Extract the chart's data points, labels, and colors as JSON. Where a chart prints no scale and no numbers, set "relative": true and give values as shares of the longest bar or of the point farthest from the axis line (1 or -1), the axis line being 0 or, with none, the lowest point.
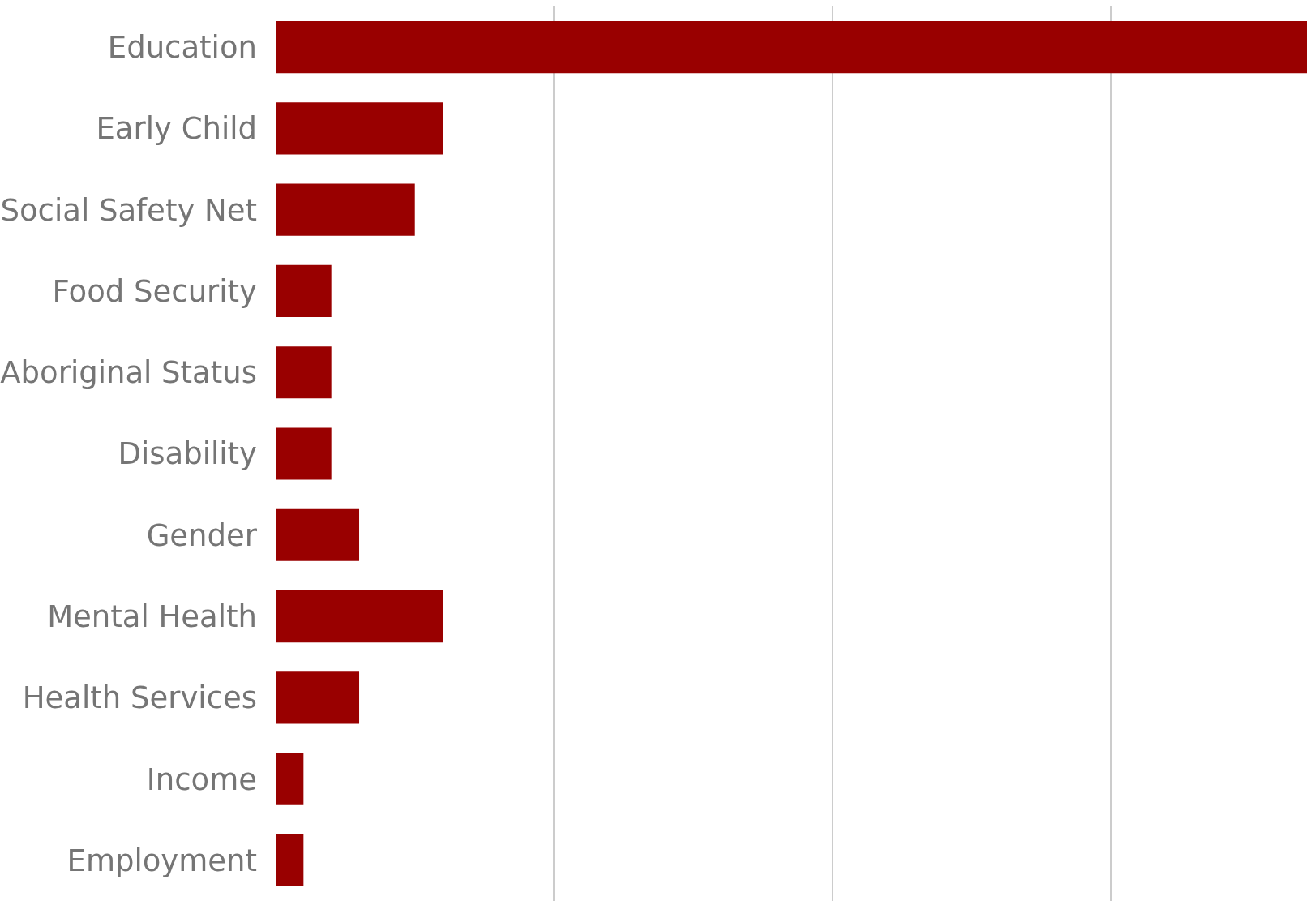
{
  "chart_data": {
    "type": "bar",
    "orientation": "horizontal",
    "relative": true,
    "grid": "x",
    "color": "#990000",
    "categories": [
      "Education",
      "Early Child",
      "Social Safety Net",
      "Food Security",
      "Aboriginal Status",
      "Disability",
      "Gender",
      "Mental Health",
      "Health Services",
      "Income",
      "Employment"
    ],
    "values": [
      1,
      0.162,
      0.135,
      0.054,
      0.054,
      0.054,
      0.081,
      0.162,
      0.081,
      0.027,
      0.027
    ]
  }
}
